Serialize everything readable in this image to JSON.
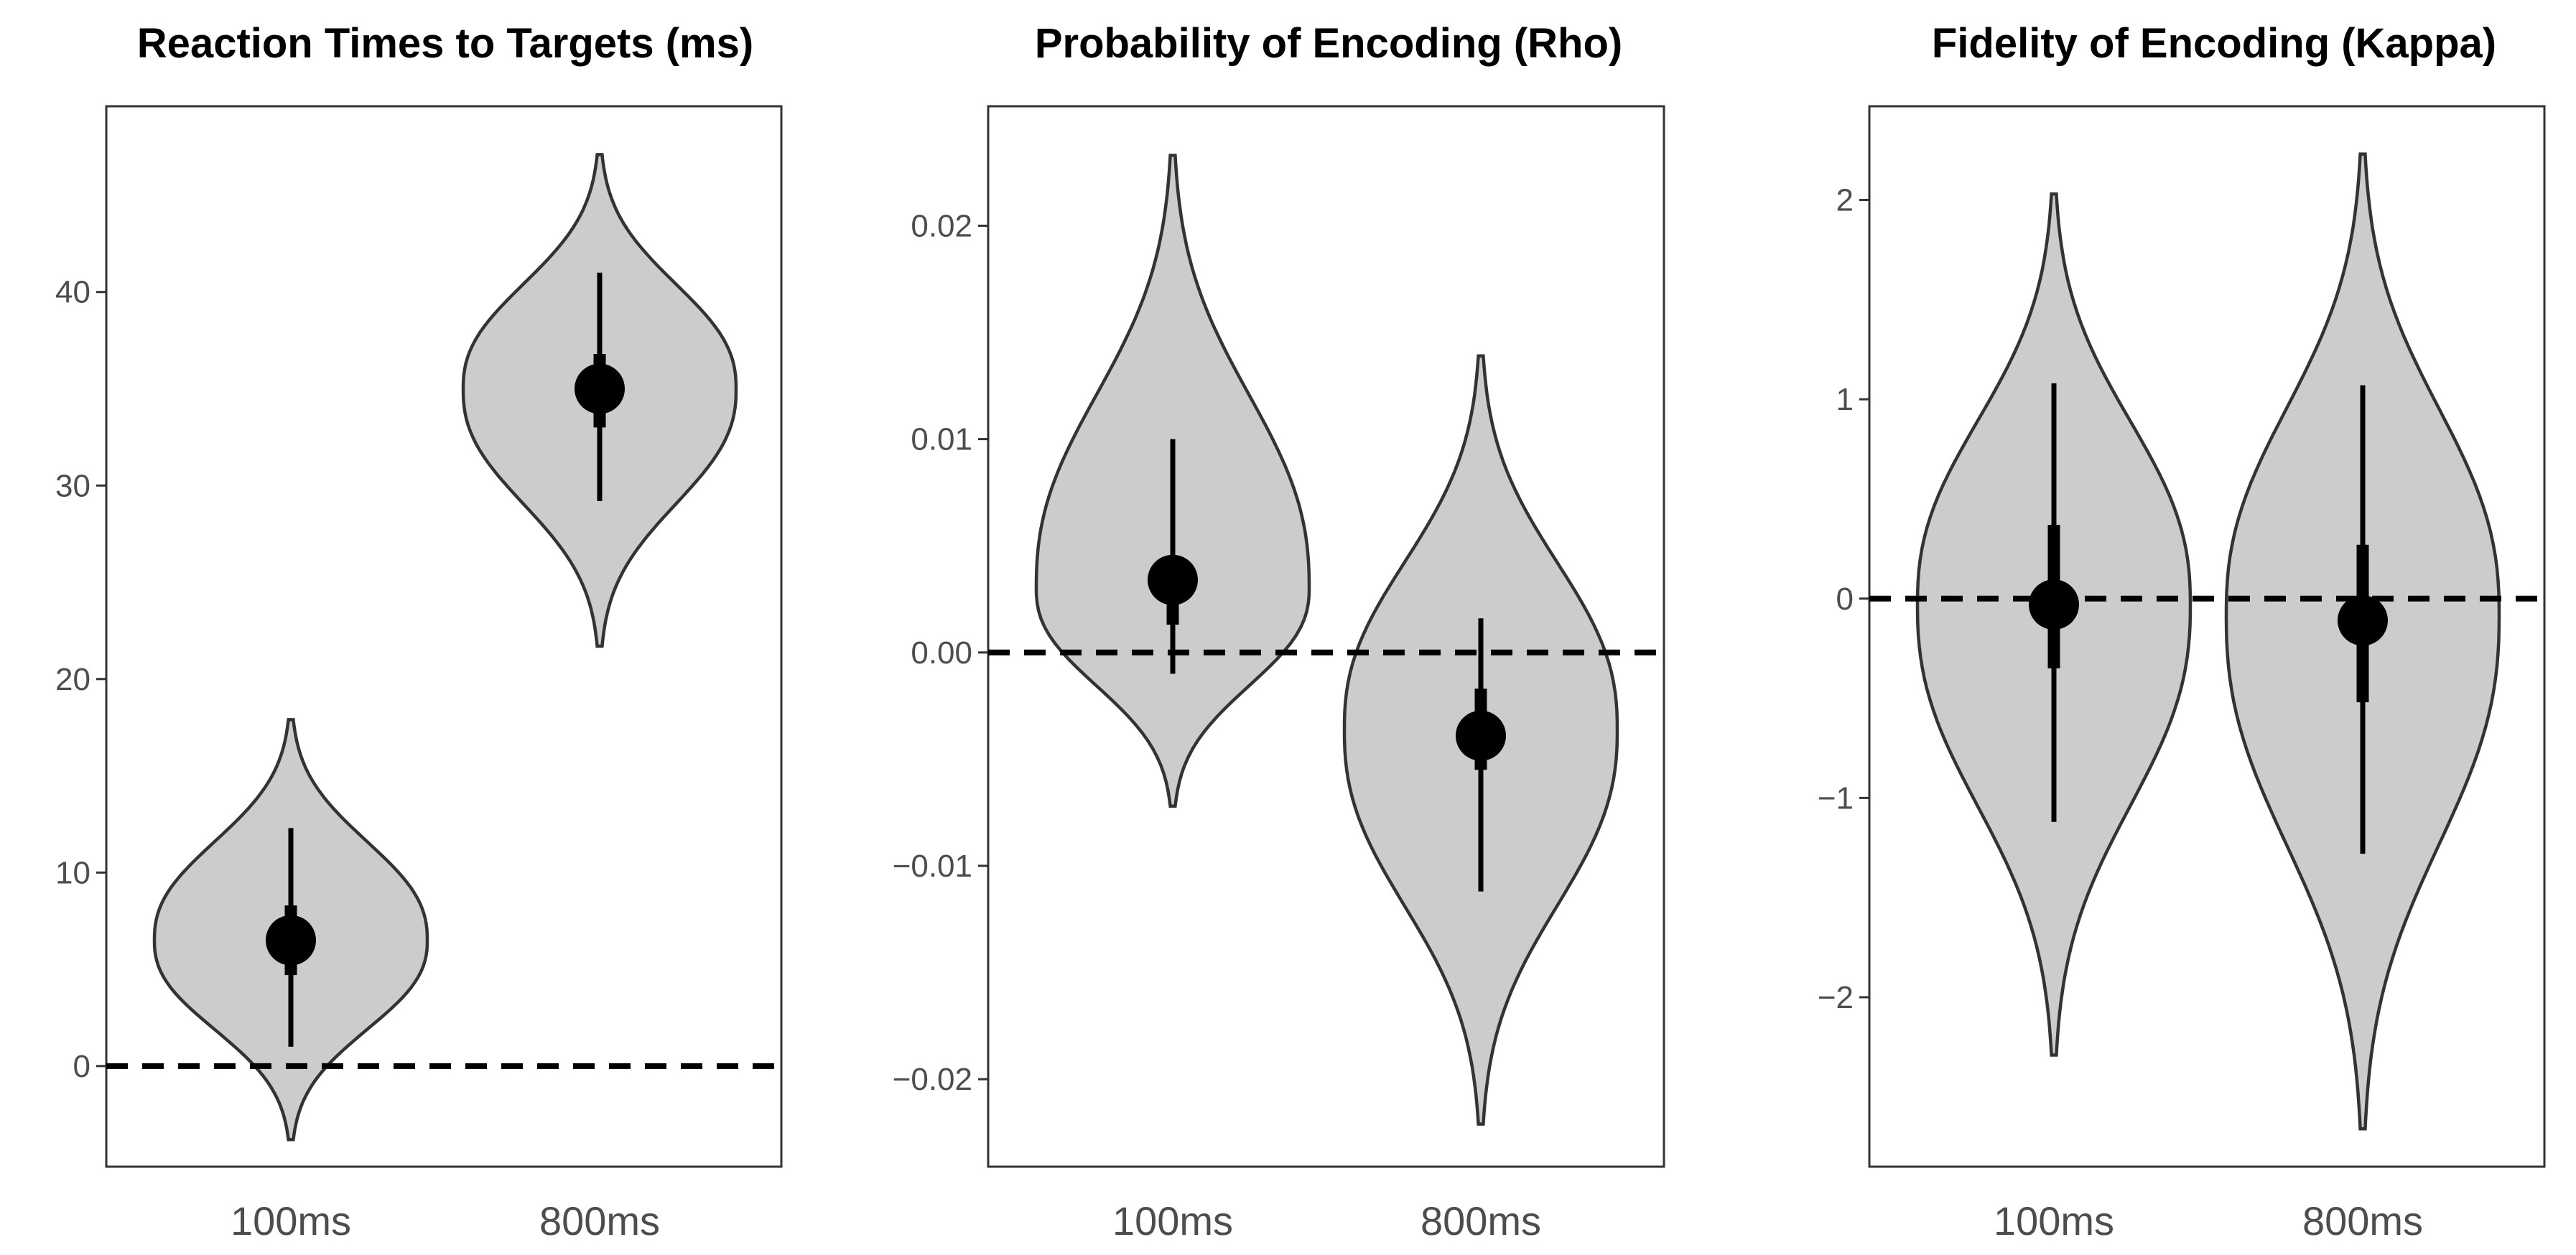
{
  "chart_data": [
    {
      "type": "violin",
      "title": "Reaction Times to Targets (ms)",
      "xlabel": "",
      "ylabel": "",
      "categories": [
        "100ms",
        "800ms"
      ],
      "ylim": [
        -5.2,
        49.6
      ],
      "yticks": [
        0,
        10,
        20,
        30,
        40
      ],
      "ytick_labels": [
        "0",
        "10",
        "20",
        "30",
        "40"
      ],
      "reference_line": 0,
      "series": [
        {
          "name": "100ms",
          "median": 6.5,
          "inner_interval": [
            4.7,
            8.3
          ],
          "outer_interval": [
            1.0,
            12.3
          ],
          "range": [
            -3.8,
            17.9
          ],
          "density_peak": 6.5
        },
        {
          "name": "800ms",
          "median": 35.0,
          "inner_interval": [
            33.0,
            36.8
          ],
          "outer_interval": [
            29.2,
            41.0
          ],
          "range": [
            21.7,
            47.1
          ],
          "density_peak": 35.0
        }
      ]
    },
    {
      "type": "violin",
      "title": "Probability of Encoding (Rho)",
      "xlabel": "",
      "ylabel": "",
      "categories": [
        "100ms",
        "800ms"
      ],
      "ylim": [
        -0.0241,
        0.0256
      ],
      "yticks": [
        -0.02,
        -0.01,
        0.0,
        0.01,
        0.02
      ],
      "ytick_labels": [
        "−0.02",
        "−0.01",
        "0.00",
        "0.01",
        "0.02"
      ],
      "reference_line": 0,
      "series": [
        {
          "name": "100ms",
          "median": 0.0034,
          "inner_interval": [
            0.0013,
            0.0045
          ],
          "outer_interval": [
            -0.001,
            0.01
          ],
          "range": [
            -0.0072,
            0.0233
          ],
          "density_peak": 0.003
        },
        {
          "name": "800ms",
          "median": -0.0039,
          "inner_interval": [
            -0.0055,
            -0.0017
          ],
          "outer_interval": [
            -0.0112,
            0.0016
          ],
          "range": [
            -0.0221,
            0.0139
          ],
          "density_peak": -0.0036
        }
      ]
    },
    {
      "type": "violin",
      "title": "Fidelity of Encoding (Kappa)",
      "xlabel": "",
      "ylabel": "",
      "categories": [
        "100ms",
        "800ms"
      ],
      "ylim": [
        -2.85,
        2.47
      ],
      "yticks": [
        -2,
        -1,
        0,
        1,
        2
      ],
      "ytick_labels": [
        "−2",
        "−1",
        "0",
        "1",
        "2"
      ],
      "reference_line": 0,
      "series": [
        {
          "name": "100ms",
          "median": -0.03,
          "inner_interval": [
            -0.35,
            0.37
          ],
          "outer_interval": [
            -1.12,
            1.08
          ],
          "range": [
            -2.29,
            2.03
          ],
          "density_peak": -0.03
        },
        {
          "name": "800ms",
          "median": -0.11,
          "inner_interval": [
            -0.52,
            0.27
          ],
          "outer_interval": [
            -1.28,
            1.07
          ],
          "range": [
            -2.66,
            2.23
          ],
          "density_peak": -0.08
        }
      ]
    }
  ]
}
